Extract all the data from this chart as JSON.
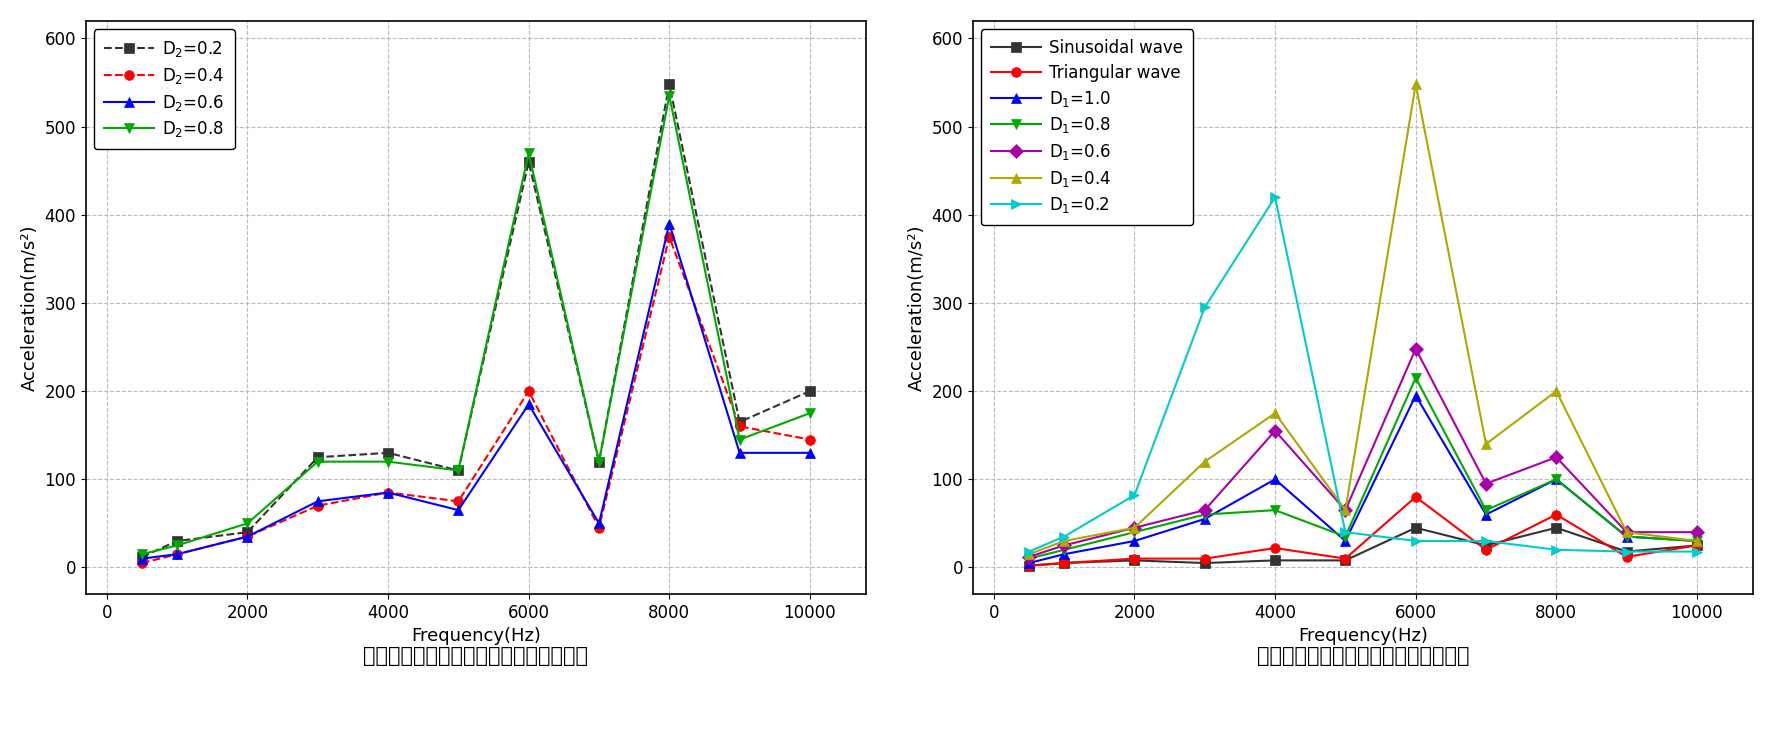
{
  "left": {
    "title": "不对称激励波形下的磁环振动加速度幅値",
    "xlabel": "Frequency(Hz)",
    "ylabel": "Acceleration(m/s²)",
    "xlim": [
      -300,
      10800
    ],
    "ylim": [
      -30,
      620
    ],
    "xticks": [
      0,
      2000,
      4000,
      6000,
      8000,
      10000
    ],
    "yticks": [
      0,
      100,
      200,
      300,
      400,
      500,
      600
    ],
    "series": [
      {
        "label": "D$_2$=0.2",
        "color": "#333333",
        "linestyle": "--",
        "marker": "s",
        "markersize": 7,
        "x": [
          500,
          1000,
          2000,
          3000,
          4000,
          5000,
          6000,
          7000,
          8000,
          9000,
          10000
        ],
        "y": [
          12,
          30,
          40,
          125,
          130,
          110,
          460,
          120,
          548,
          165,
          200
        ]
      },
      {
        "label": "D$_2$=0.4",
        "color": "#ff0000",
        "linestyle": "--",
        "marker": "o",
        "markersize": 7,
        "x": [
          500,
          1000,
          2000,
          3000,
          4000,
          5000,
          6000,
          7000,
          8000,
          9000,
          10000
        ],
        "y": [
          5,
          15,
          35,
          70,
          85,
          75,
          200,
          45,
          375,
          160,
          145
        ]
      },
      {
        "label": "D$_2$=0.6",
        "color": "#0000ff",
        "linestyle": "-",
        "marker": "^",
        "markersize": 7,
        "x": [
          500,
          1000,
          2000,
          3000,
          4000,
          5000,
          6000,
          7000,
          8000,
          9000,
          10000
        ],
        "y": [
          10,
          15,
          35,
          75,
          85,
          65,
          185,
          50,
          390,
          130,
          130
        ]
      },
      {
        "label": "D$_2$=0.8",
        "color": "#00aa00",
        "linestyle": "-",
        "marker": "v",
        "markersize": 7,
        "x": [
          500,
          1000,
          2000,
          3000,
          4000,
          5000,
          6000,
          7000,
          8000,
          9000,
          10000
        ],
        "y": [
          15,
          25,
          50,
          120,
          120,
          110,
          470,
          120,
          535,
          145,
          175
        ]
      }
    ]
  },
  "right": {
    "title": "对称激励波形下的磁环振动加速度幅値",
    "xlabel": "Frequency(Hz)",
    "ylabel": "Acceleration(m/s²)",
    "xlim": [
      -300,
      10800
    ],
    "ylim": [
      -30,
      620
    ],
    "xticks": [
      0,
      2000,
      4000,
      6000,
      8000,
      10000
    ],
    "yticks": [
      0,
      100,
      200,
      300,
      400,
      500,
      600
    ],
    "series": [
      {
        "label": "Sinusoidal wave",
        "color": "#333333",
        "linestyle": "-",
        "marker": "s",
        "markersize": 7,
        "x": [
          500,
          1000,
          2000,
          3000,
          4000,
          5000,
          6000,
          7000,
          8000,
          9000,
          10000
        ],
        "y": [
          2,
          5,
          8,
          5,
          8,
          8,
          45,
          25,
          45,
          18,
          25
        ]
      },
      {
        "label": "Triangular wave",
        "color": "#ff0000",
        "linestyle": "-",
        "marker": "o",
        "markersize": 7,
        "x": [
          500,
          1000,
          2000,
          3000,
          4000,
          5000,
          6000,
          7000,
          8000,
          9000,
          10000
        ],
        "y": [
          2,
          5,
          10,
          10,
          22,
          10,
          80,
          20,
          60,
          12,
          25
        ]
      },
      {
        "label": "D$_1$=1.0",
        "color": "#0000ff",
        "linestyle": "-",
        "marker": "^",
        "markersize": 7,
        "x": [
          500,
          1000,
          2000,
          3000,
          4000,
          5000,
          6000,
          7000,
          8000,
          9000,
          10000
        ],
        "y": [
          5,
          15,
          30,
          55,
          100,
          30,
          195,
          60,
          100,
          35,
          30
        ]
      },
      {
        "label": "D$_1$=0.8",
        "color": "#00aa00",
        "linestyle": "-",
        "marker": "v",
        "markersize": 7,
        "x": [
          500,
          1000,
          2000,
          3000,
          4000,
          5000,
          6000,
          7000,
          8000,
          9000,
          10000
        ],
        "y": [
          10,
          20,
          40,
          60,
          65,
          35,
          215,
          65,
          100,
          35,
          30
        ]
      },
      {
        "label": "D$_1$=0.6",
        "color": "#aa00aa",
        "linestyle": "-",
        "marker": "D",
        "markersize": 7,
        "x": [
          500,
          1000,
          2000,
          3000,
          4000,
          5000,
          6000,
          7000,
          8000,
          9000,
          10000
        ],
        "y": [
          12,
          25,
          45,
          65,
          155,
          65,
          248,
          95,
          125,
          40,
          40
        ]
      },
      {
        "label": "D$_1$=0.4",
        "color": "#aaaa00",
        "linestyle": "-",
        "marker": "^",
        "markersize": 7,
        "x": [
          500,
          1000,
          2000,
          3000,
          4000,
          5000,
          6000,
          7000,
          8000,
          9000,
          10000
        ],
        "y": [
          15,
          30,
          45,
          120,
          175,
          65,
          548,
          140,
          200,
          40,
          30
        ]
      },
      {
        "label": "D$_1$=0.2",
        "color": "#00cccc",
        "linestyle": "-",
        "marker": ">",
        "markersize": 7,
        "x": [
          500,
          1000,
          2000,
          3000,
          4000,
          5000,
          6000,
          7000,
          8000,
          9000,
          10000
        ],
        "y": [
          18,
          35,
          82,
          295,
          420,
          40,
          30,
          30,
          20,
          18,
          18
        ]
      }
    ]
  },
  "title_fontsize": 15,
  "label_fontsize": 13,
  "tick_fontsize": 12,
  "legend_fontsize": 12
}
